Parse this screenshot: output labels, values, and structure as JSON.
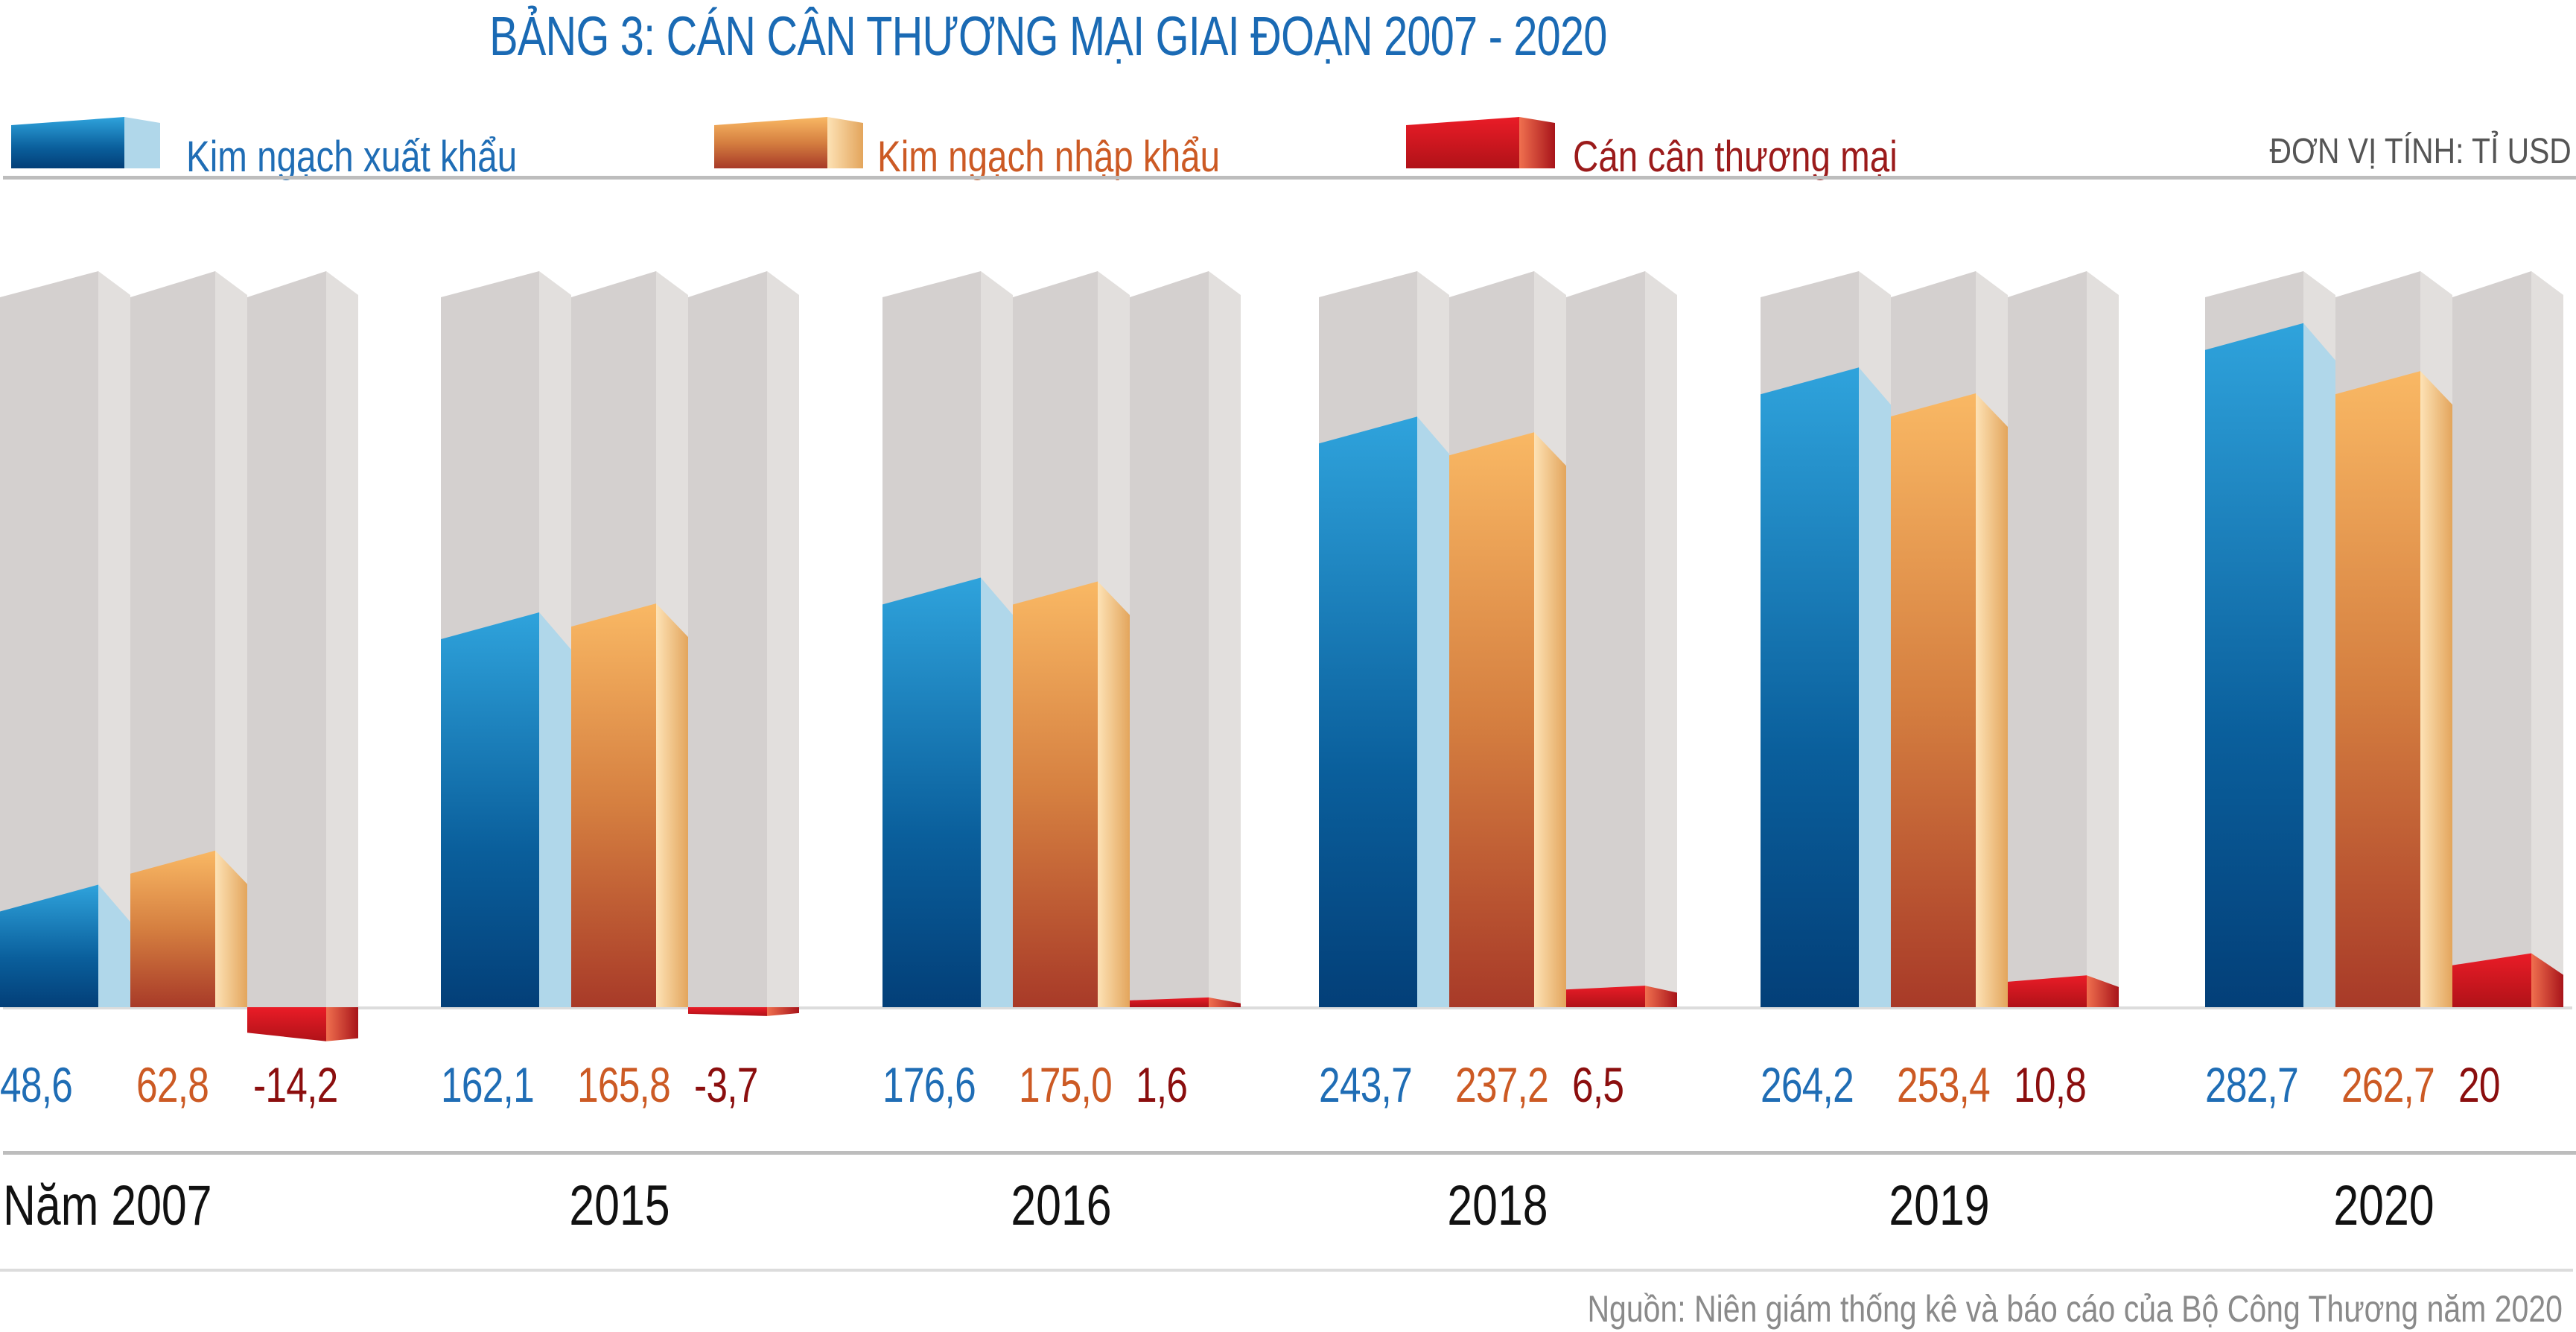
{
  "chart_data": {
    "type": "bar",
    "title": "BẢNG 3: CÁN CÂN THƯƠNG MẠI GIAI ĐOẠN 2007 - 2020",
    "unit_label": "ĐƠN VỊ TÍNH: TỈ USD",
    "categories": [
      "Năm 2007",
      "2015",
      "2016",
      "2018",
      "2019",
      "2020"
    ],
    "value_labels": [
      [
        "48,6",
        "62,8",
        "-14,2"
      ],
      [
        "162,1",
        "165,8",
        "-3,7"
      ],
      [
        "176,6",
        "175,0",
        "1,6"
      ],
      [
        "243,7",
        "237,2",
        "6,5"
      ],
      [
        "264,2",
        "253,4",
        "10,8"
      ],
      [
        "282,7",
        "262,7",
        "20"
      ]
    ],
    "series": [
      {
        "name": "Kim ngạch xuất khẩu",
        "values": [
          48.6,
          162.1,
          176.6,
          243.7,
          264.2,
          282.7
        ],
        "color": "#1f6db5"
      },
      {
        "name": "Kim ngạch nhập khẩu",
        "values": [
          62.8,
          165.8,
          175.0,
          237.2,
          253.4,
          262.7
        ],
        "color": "#cc5a24"
      },
      {
        "name": "Cán cân thương mại",
        "values": [
          -14.2,
          -3.7,
          1.6,
          6.5,
          10.8,
          20
        ],
        "color": "#8b0e0e"
      }
    ],
    "ylim": [
      -20,
      290
    ],
    "grid": false,
    "legend_position": "top",
    "source": "Nguồn: Niên giám thống kê và báo cáo của Bộ Công Thương năm 2020"
  },
  "colors": {
    "title": "#1a6ab4",
    "column_front": "#d4d0cf",
    "column_side": "#e2dfdd",
    "export_top": "#2fa3dc",
    "export_bottom": "#033f78",
    "export_side": "#b0d7ea",
    "import_top": "#f9b864",
    "import_bottom": "#a83a28",
    "import_side_light": "#fde2b5",
    "import_side_dark": "#e3a55c",
    "balance_top": "#ea1c27",
    "balance_bottom": "#b01218",
    "balance_side_light": "#f0704f",
    "balance_side_dark": "#a8141a"
  }
}
